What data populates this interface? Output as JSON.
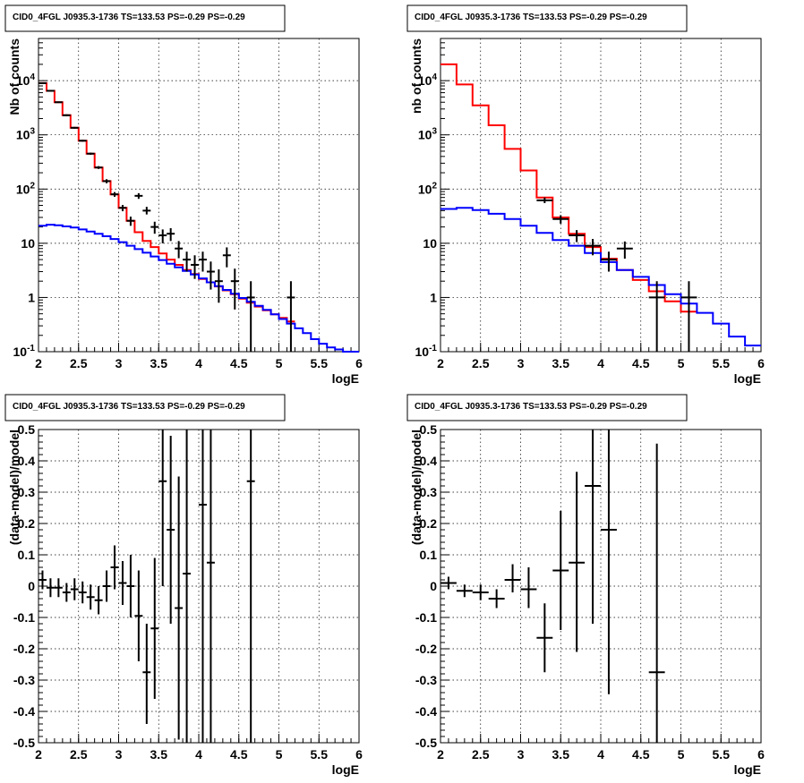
{
  "chart_data": [
    {
      "id": "p1",
      "type": "line",
      "title": "CID0_4FGL J0935.3-1736 TS=133.53 PS=-0.29 PS=-0.29",
      "xlabel": "logE",
      "ylabel": "Nb of counts",
      "xlim": [
        2,
        6
      ],
      "ylim": [
        0.1,
        60000
      ],
      "ylog": true,
      "grid": true,
      "xticks": [
        "2",
        "2.5",
        "3",
        "3.5",
        "4",
        "4.5",
        "5",
        "5.5",
        "6"
      ],
      "yticks": [
        "10^{-1}",
        "1",
        "10",
        "10^{2}",
        "10^{3}",
        "10^{4}"
      ],
      "series": [
        {
          "type": "step",
          "color": "#ff0000",
          "edges": [
            2.0,
            2.1,
            2.2,
            2.3,
            2.4,
            2.5,
            2.6,
            2.7,
            2.8,
            2.9,
            3.0,
            3.1,
            3.2,
            3.3,
            3.4,
            3.5,
            3.6,
            3.7,
            3.8,
            3.9,
            4.0,
            4.1,
            4.2,
            4.3,
            4.4,
            4.5,
            4.6,
            4.7,
            4.8,
            4.9,
            5.0,
            5.1,
            5.2
          ],
          "values": [
            9000,
            6500,
            4000,
            2300,
            1350,
            780,
            450,
            250,
            140,
            80,
            45,
            26,
            16,
            11,
            8.5,
            6.5,
            5,
            4,
            3.2,
            2.7,
            2.2,
            1.9,
            1.6,
            1.35,
            1.15,
            0.95,
            0.8,
            0.68,
            0.58,
            0.49,
            0.42,
            0.36
          ]
        },
        {
          "type": "step",
          "color": "#0000ff",
          "edges": [
            2.0,
            2.1,
            2.2,
            2.3,
            2.4,
            2.5,
            2.6,
            2.7,
            2.8,
            2.9,
            3.0,
            3.1,
            3.2,
            3.3,
            3.4,
            3.5,
            3.6,
            3.7,
            3.8,
            3.9,
            4.0,
            4.1,
            4.2,
            4.3,
            4.4,
            4.5,
            4.6,
            4.7,
            4.8,
            4.9,
            5.0,
            5.1,
            5.2,
            5.3,
            5.4,
            5.5,
            5.6,
            5.7,
            5.8,
            5.9,
            6.0
          ],
          "values": [
            21,
            22,
            21.5,
            20.5,
            19.5,
            18,
            16.5,
            15,
            13.5,
            12,
            10.5,
            9,
            7.8,
            6.7,
            5.7,
            4.9,
            4.2,
            3.6,
            3.1,
            2.65,
            2.25,
            1.9,
            1.62,
            1.38,
            1.17,
            0.98,
            0.83,
            0.7,
            0.59,
            0.49,
            0.4,
            0.33,
            0.27,
            0.22,
            0.17,
            0.14,
            0.12,
            0.11,
            0.1,
            0.1
          ]
        },
        {
          "type": "points",
          "color": "#000000",
          "points": [
            {
              "x": 2.05,
              "y": 9000,
              "lo": 8800,
              "hi": 9200
            },
            {
              "x": 2.15,
              "y": 6500,
              "lo": 6350,
              "hi": 6650
            },
            {
              "x": 2.25,
              "y": 4000,
              "lo": 3880,
              "hi": 4120
            },
            {
              "x": 2.35,
              "y": 2300,
              "lo": 2210,
              "hi": 2390
            },
            {
              "x": 2.45,
              "y": 1350,
              "lo": 1300,
              "hi": 1400
            },
            {
              "x": 2.55,
              "y": 780,
              "lo": 750,
              "hi": 810
            },
            {
              "x": 2.65,
              "y": 450,
              "lo": 430,
              "hi": 470
            },
            {
              "x": 2.75,
              "y": 250,
              "lo": 235,
              "hi": 265
            },
            {
              "x": 2.85,
              "y": 140,
              "lo": 128,
              "hi": 152
            },
            {
              "x": 2.95,
              "y": 80,
              "lo": 72,
              "hi": 88
            },
            {
              "x": 3.05,
              "y": 45,
              "lo": 39,
              "hi": 51
            },
            {
              "x": 3.15,
              "y": 26,
              "lo": 21,
              "hi": 31
            },
            {
              "x": 3.25,
              "y": 75,
              "lo": 66,
              "hi": 84
            },
            {
              "x": 3.35,
              "y": 40,
              "lo": 34,
              "hi": 47
            },
            {
              "x": 3.45,
              "y": 20,
              "lo": 15,
              "hi": 25
            },
            {
              "x": 3.55,
              "y": 14,
              "lo": 10,
              "hi": 18
            },
            {
              "x": 3.65,
              "y": 15,
              "lo": 11,
              "hi": 19
            },
            {
              "x": 3.75,
              "y": 8,
              "lo": 5.3,
              "hi": 11
            },
            {
              "x": 3.85,
              "y": 5,
              "lo": 3,
              "hi": 7
            },
            {
              "x": 3.95,
              "y": 4,
              "lo": 2.2,
              "hi": 6
            },
            {
              "x": 4.05,
              "y": 5,
              "lo": 3,
              "hi": 7
            },
            {
              "x": 4.15,
              "y": 3,
              "lo": 1.4,
              "hi": 4.6
            },
            {
              "x": 4.25,
              "y": 2,
              "lo": 0.8,
              "hi": 3.3
            },
            {
              "x": 4.35,
              "y": 6,
              "lo": 3.6,
              "hi": 8.4
            },
            {
              "x": 4.45,
              "y": 2,
              "lo": 0.6,
              "hi": 3.4
            },
            {
              "x": 4.65,
              "y": 1,
              "lo": 0.1,
              "hi": 2
            },
            {
              "x": 5.15,
              "y": 1,
              "lo": 0.1,
              "hi": 2
            }
          ]
        }
      ]
    },
    {
      "id": "p2",
      "type": "line",
      "title": "CID0_4FGL J0935.3-1736 TS=133.53 PS=-0.29 PS=-0.29",
      "xlabel": "logE",
      "ylabel": "nb of counts",
      "xlim": [
        2,
        6
      ],
      "ylim": [
        0.1,
        60000
      ],
      "ylog": true,
      "grid": true,
      "xticks": [
        "2",
        "2.5",
        "3",
        "3.5",
        "4",
        "4.5",
        "5",
        "5.5",
        "6"
      ],
      "yticks": [
        "10^{-1}",
        "1",
        "10",
        "10^{2}",
        "10^{3}",
        "10^{4}"
      ],
      "series": [
        {
          "type": "step",
          "color": "#ff0000",
          "edges": [
            2.0,
            2.2,
            2.4,
            2.6,
            2.8,
            3.0,
            3.2,
            3.4,
            3.6,
            3.8,
            4.0,
            4.2,
            4.4,
            4.6,
            4.8,
            5.0,
            5.2
          ],
          "values": [
            20000,
            8500,
            3500,
            1500,
            550,
            220,
            70,
            30,
            15,
            8.5,
            5.2,
            3.2,
            2.1,
            1.3,
            0.85,
            0.55
          ]
        },
        {
          "type": "step",
          "color": "#0000ff",
          "edges": [
            2.0,
            2.2,
            2.4,
            2.6,
            2.8,
            3.0,
            3.2,
            3.4,
            3.6,
            3.8,
            4.0,
            4.2,
            4.4,
            4.6,
            4.8,
            5.0,
            5.2,
            5.4,
            5.6,
            5.8,
            6.0
          ],
          "values": [
            43,
            45,
            41,
            35,
            28,
            21,
            15.5,
            11.5,
            9,
            6.6,
            4.5,
            3.2,
            2.4,
            1.7,
            1.15,
            0.77,
            0.52,
            0.33,
            0.19,
            0.13
          ]
        },
        {
          "type": "points",
          "color": "#000000",
          "points": [
            {
              "x": 3.3,
              "y": 62,
              "lo": 55,
              "hi": 70
            },
            {
              "x": 3.5,
              "y": 28,
              "lo": 23,
              "hi": 33
            },
            {
              "x": 3.7,
              "y": 14,
              "lo": 10.5,
              "hi": 17.5
            },
            {
              "x": 3.9,
              "y": 9,
              "lo": 6,
              "hi": 12
            },
            {
              "x": 4.1,
              "y": 5,
              "lo": 3,
              "hi": 7
            },
            {
              "x": 4.3,
              "y": 8,
              "lo": 5.2,
              "hi": 10.8
            },
            {
              "x": 4.7,
              "y": 1,
              "lo": 0.1,
              "hi": 2
            },
            {
              "x": 5.1,
              "y": 1,
              "lo": 0.1,
              "hi": 2
            }
          ]
        }
      ]
    },
    {
      "id": "p3",
      "type": "scatter",
      "title": "CID0_4FGL J0935.3-1736 TS=133.53 PS=-0.29 PS=-0.29",
      "xlabel": "logE",
      "ylabel": "(data-model)/model",
      "xlim": [
        2,
        6
      ],
      "ylim": [
        -0.5,
        0.5
      ],
      "ylog": false,
      "grid": true,
      "xticks": [
        "2",
        "2.5",
        "3",
        "3.5",
        "4",
        "4.5",
        "5",
        "5.5",
        "6"
      ],
      "yticks": [
        "-0.5",
        "-0.4",
        "-0.3",
        "-0.2",
        "-0.1",
        "0",
        "0.1",
        "0.2",
        "0.3",
        "0.4",
        "0.5"
      ],
      "points": [
        {
          "x": 2.05,
          "y": 0.02,
          "lo": -0.01,
          "hi": 0.05
        },
        {
          "x": 2.15,
          "y": -0.005,
          "lo": -0.035,
          "hi": 0.025
        },
        {
          "x": 2.25,
          "y": -0.005,
          "lo": -0.035,
          "hi": 0.025
        },
        {
          "x": 2.35,
          "y": -0.02,
          "lo": -0.05,
          "hi": 0.01
        },
        {
          "x": 2.45,
          "y": -0.01,
          "lo": -0.045,
          "hi": 0.025
        },
        {
          "x": 2.55,
          "y": -0.02,
          "lo": -0.055,
          "hi": 0.015
        },
        {
          "x": 2.65,
          "y": -0.035,
          "lo": -0.075,
          "hi": 0.005
        },
        {
          "x": 2.75,
          "y": -0.045,
          "lo": -0.09,
          "hi": 0.0
        },
        {
          "x": 2.85,
          "y": 0.0,
          "lo": -0.05,
          "hi": 0.05
        },
        {
          "x": 2.95,
          "y": 0.06,
          "lo": -0.01,
          "hi": 0.13
        },
        {
          "x": 3.05,
          "y": 0.01,
          "lo": -0.06,
          "hi": 0.08
        },
        {
          "x": 3.15,
          "y": 0.0,
          "lo": -0.1,
          "hi": 0.1
        },
        {
          "x": 3.25,
          "y": -0.095,
          "lo": -0.24,
          "hi": 0.05
        },
        {
          "x": 3.35,
          "y": -0.275,
          "lo": -0.44,
          "hi": -0.12
        },
        {
          "x": 3.45,
          "y": -0.135,
          "lo": -0.36,
          "hi": 0.09
        },
        {
          "x": 3.55,
          "y": 0.335,
          "lo": 0.0,
          "hi": 0.67
        },
        {
          "x": 3.65,
          "y": 0.18,
          "lo": -0.12,
          "hi": 0.48
        },
        {
          "x": 3.75,
          "y": -0.07,
          "lo": -0.49,
          "hi": 0.35
        },
        {
          "x": 3.85,
          "y": 0.04,
          "lo": -0.5,
          "hi": 0.58
        },
        {
          "x": 4.05,
          "y": 0.26,
          "lo": -0.5,
          "hi": 1.02
        },
        {
          "x": 4.15,
          "y": 0.075,
          "lo": -0.5,
          "hi": 0.65
        },
        {
          "x": 4.65,
          "y": 0.335,
          "lo": -0.5,
          "hi": 1.3
        }
      ]
    },
    {
      "id": "p4",
      "type": "scatter",
      "title": "CID0_4FGL J0935.3-1736 TS=133.53 PS=-0.29 PS=-0.29",
      "xlabel": "logE",
      "ylabel": "(data-model)/model",
      "xlim": [
        2,
        6
      ],
      "ylim": [
        -0.5,
        0.5
      ],
      "ylog": false,
      "grid": true,
      "xticks": [
        "2",
        "2.5",
        "3",
        "3.5",
        "4",
        "4.5",
        "5",
        "5.5",
        "6"
      ],
      "yticks": [
        "-0.5",
        "-0.4",
        "-0.3",
        "-0.2",
        "-0.1",
        "0",
        "0.1",
        "0.2",
        "0.3",
        "0.4",
        "0.5"
      ],
      "points": [
        {
          "x": 2.1,
          "y": 0.01,
          "lo": -0.01,
          "hi": 0.03
        },
        {
          "x": 2.3,
          "y": -0.015,
          "lo": -0.035,
          "hi": 0.005
        },
        {
          "x": 2.5,
          "y": -0.02,
          "lo": -0.045,
          "hi": 0.005
        },
        {
          "x": 2.7,
          "y": -0.04,
          "lo": -0.07,
          "hi": -0.01
        },
        {
          "x": 2.9,
          "y": 0.02,
          "lo": -0.02,
          "hi": 0.07
        },
        {
          "x": 3.1,
          "y": -0.01,
          "lo": -0.07,
          "hi": 0.06
        },
        {
          "x": 3.3,
          "y": -0.165,
          "lo": -0.275,
          "hi": -0.055
        },
        {
          "x": 3.5,
          "y": 0.05,
          "lo": -0.14,
          "hi": 0.24
        },
        {
          "x": 3.7,
          "y": 0.075,
          "lo": -0.21,
          "hi": 0.365
        },
        {
          "x": 3.9,
          "y": 0.32,
          "lo": -0.12,
          "hi": 0.77
        },
        {
          "x": 4.1,
          "y": 0.18,
          "lo": -0.345,
          "hi": 0.7
        },
        {
          "x": 4.7,
          "y": -0.275,
          "lo": -0.5,
          "hi": 0.455
        }
      ]
    }
  ]
}
